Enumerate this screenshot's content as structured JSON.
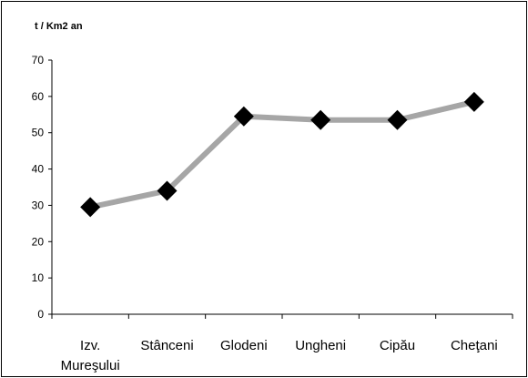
{
  "chart_data": {
    "type": "line",
    "title": "",
    "ylabel": "t / Km2 an",
    "xlabel": "",
    "categories": [
      "Izv. Mureşului",
      "Stânceni",
      "Glodeni",
      "Ungheni",
      "Cipău",
      "Cheţani"
    ],
    "category_lines": [
      [
        "Izv.",
        "Mureşului"
      ],
      [
        "Stânceni"
      ],
      [
        "Glodeni"
      ],
      [
        "Ungheni"
      ],
      [
        "Cipău"
      ],
      [
        "Cheţani"
      ]
    ],
    "values": [
      29.5,
      34,
      54.5,
      53.5,
      53.5,
      58.5
    ],
    "yticks": [
      0,
      10,
      20,
      30,
      40,
      50,
      60,
      70
    ],
    "ylim": [
      0,
      70
    ],
    "grid": false,
    "legend": false,
    "line_color": "#a6a6a6",
    "marker_color": "#000000",
    "marker": "diamond"
  }
}
